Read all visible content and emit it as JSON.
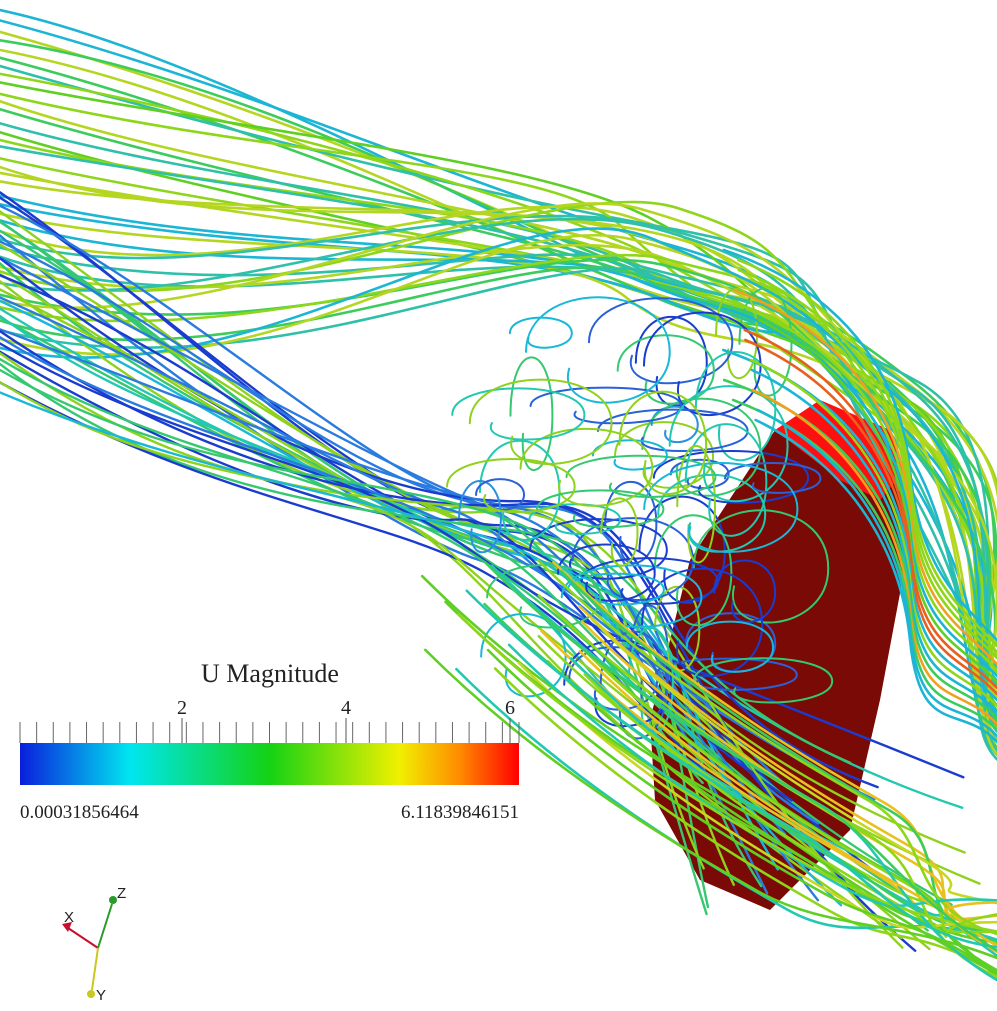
{
  "scalar_bar": {
    "title": "U Magnitude",
    "tick_labels": [
      "2",
      "4",
      "6"
    ],
    "tick_values": [
      2,
      4,
      6
    ],
    "min_label": "0.00031856464",
    "max_label": "6.11839846151",
    "range": [
      0.00031856464,
      6.11839846151
    ],
    "colormap": [
      "#0a1edc",
      "#00f0f0",
      "#14d214",
      "#f0f000",
      "#ff7800",
      "#ff0000"
    ]
  },
  "orientation_axes": {
    "x_label": "X",
    "y_label": "Y",
    "z_label": "Z",
    "x_color": "#c8102e",
    "y_color": "#d8d820",
    "z_color": "#2a9a2a"
  },
  "body": {
    "face_color": "#7a0a05",
    "top_color": "#ff1010"
  }
}
